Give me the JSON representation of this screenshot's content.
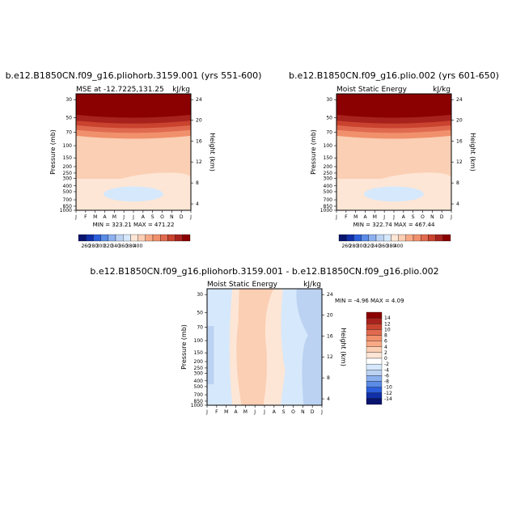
{
  "panel1": {
    "title": "b.e12.B1850CN.f09_g16.pliohorb.3159.001 (yrs 551-600)",
    "left_label": "MSE at -12.7225,131.25",
    "right_label": "kJ/kg",
    "min_max": "MIN = 323.21  MAX = 471.22"
  },
  "panel2": {
    "title": "b.e12.B1850CN.f09_g16.plio.002 (yrs 601-650)",
    "left_label": "Moist Static Energy",
    "right_label": "kJ/kg",
    "min_max": "MIN = 322.74  MAX = 467.44"
  },
  "panel3": {
    "title": "b.e12.B1850CN.f09_g16.pliohorb.3159.001 - b.e12.B1850CN.f09_g16.plio.002",
    "left_label": "Moist Static Energy",
    "right_label": "kJ/kg",
    "min_max": "MIN = -4.96 MAX = 4.09"
  },
  "axes": {
    "ylabel": "Pressure (mb)",
    "ylabel_right": "Height (km)",
    "pressure_ticks": [
      "30",
      "50",
      "70",
      "100",
      "150",
      "200",
      "250",
      "300",
      "400",
      "500",
      "700",
      "850",
      "1000"
    ],
    "height_ticks": [
      "24",
      "20",
      "16",
      "12",
      "8",
      "4"
    ],
    "months": [
      "J",
      "F",
      "M",
      "A",
      "M",
      "J",
      "J",
      "A",
      "S",
      "O",
      "N",
      "D",
      "J"
    ]
  },
  "colors": {
    "dark_red": "#8b0000",
    "peach": "#fbcfb4",
    "light_peach": "#fde6d6",
    "light_blue": "#d6e8fb",
    "mid_blue": "#bcd2f2"
  },
  "chart_data": [
    {
      "type": "heatmap",
      "title": "b.e12.B1850CN.f09_g16.pliohorb.3159.001 (yrs 551-600)",
      "ylabel": "Pressure (mb)",
      "ylabel_right": "Height (km)",
      "colorbar_levels": [
        260,
        280,
        300,
        320,
        340,
        360,
        380,
        400
      ],
      "min": 323.21,
      "max": 471.22
    },
    {
      "type": "heatmap",
      "title": "b.e12.B1850CN.f09_g16.plio.002 (yrs 601-650)",
      "ylabel": "Pressure (mb)",
      "ylabel_right": "Height (km)",
      "colorbar_levels": [
        260,
        280,
        300,
        320,
        340,
        360,
        380,
        400
      ],
      "min": 322.74,
      "max": 467.44
    },
    {
      "type": "heatmap",
      "title": "b.e12.B1850CN.f09_g16.pliohorb.3159.001 - b.e12.B1850CN.f09_g16.plio.002",
      "ylabel": "Pressure (mb)",
      "ylabel_right": "Height (km)",
      "colorbar_levels": [
        14,
        12,
        10,
        8,
        6,
        4,
        2,
        0,
        -2,
        -4,
        -6,
        -8,
        -10,
        -12,
        -14
      ],
      "min": -4.96,
      "max": 4.09
    }
  ]
}
